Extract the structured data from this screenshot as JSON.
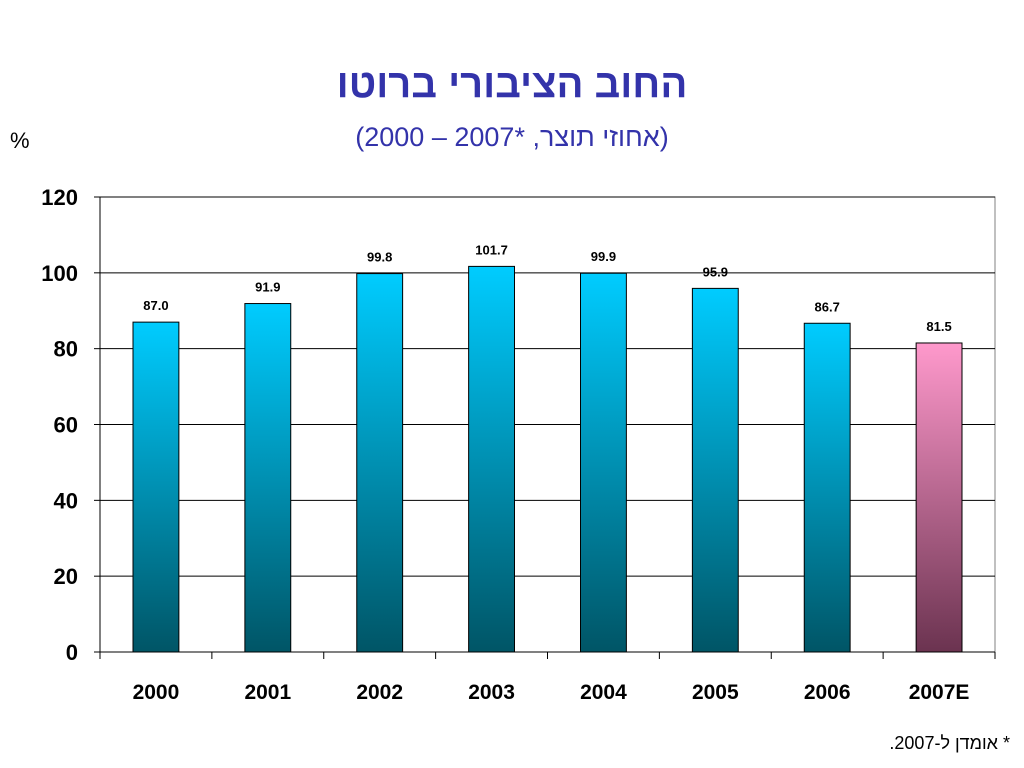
{
  "title": "החוב הציבורי ברוטו",
  "subtitle": "(אחוזי תוצר, *2007 – 2000)",
  "unit_label": "%",
  "footnote": "* אומדן ל-2007.",
  "colors": {
    "title": "#3333aa",
    "bar_top": "#00ccff",
    "bar_bottom": "#005566",
    "estimate_top": "#ff99cc",
    "estimate_bottom": "#6b3350",
    "gridline": "#000000"
  },
  "chart_data": {
    "type": "bar",
    "categories": [
      "2000",
      "2001",
      "2002",
      "2003",
      "2004",
      "2005",
      "2006",
      "2007E"
    ],
    "values": [
      87.0,
      91.9,
      99.8,
      101.7,
      99.9,
      95.9,
      86.7,
      81.5
    ],
    "data_labels": [
      "87.0",
      "91.9",
      "99.8",
      "101.7",
      "99.9",
      "95.9",
      "86.7",
      "81.5"
    ],
    "highlight_index": 7,
    "ylim": [
      0,
      120
    ],
    "yticks": [
      "0",
      "20",
      "40",
      "60",
      "80",
      "100",
      "120"
    ],
    "grid": true,
    "xlabel": "",
    "ylabel": "%"
  }
}
